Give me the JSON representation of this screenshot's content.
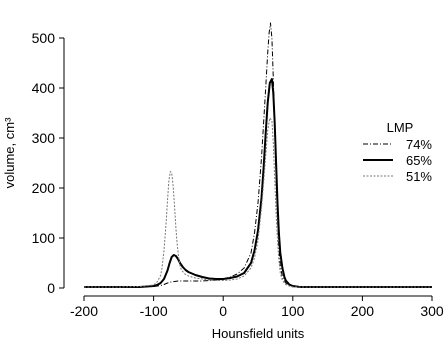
{
  "chart_data": {
    "type": "line",
    "title": "",
    "xlabel": "Hounsfield units",
    "ylabel": "volume, cm³",
    "xlim": [
      -200,
      300
    ],
    "ylim": [
      0,
      540
    ],
    "xticks": [
      -200,
      -100,
      0,
      100,
      200,
      300
    ],
    "yticks": [
      0,
      100,
      200,
      300,
      400,
      500
    ],
    "grid": false,
    "legend": {
      "title": "LMP",
      "position": "right"
    },
    "series": [
      {
        "name": "74%",
        "style": "dashdot",
        "color": "#000000",
        "x": [
          -200,
          -150,
          -120,
          -100,
          -90,
          -85,
          -80,
          -75,
          -70,
          -65,
          -60,
          -50,
          -40,
          -30,
          -20,
          -10,
          0,
          10,
          20,
          30,
          40,
          45,
          50,
          55,
          58,
          61,
          64,
          66,
          68,
          70,
          72,
          74,
          76,
          78,
          80,
          82,
          85,
          90,
          95,
          100,
          110,
          120,
          150,
          200,
          250,
          300
        ],
        "y": [
          2,
          2,
          2,
          3,
          5,
          7,
          10,
          12,
          13,
          14,
          14,
          14,
          14,
          14,
          15,
          16,
          18,
          22,
          28,
          40,
          70,
          110,
          170,
          260,
          330,
          400,
          470,
          510,
          530,
          500,
          420,
          320,
          220,
          140,
          80,
          45,
          22,
          10,
          5,
          3,
          2,
          2,
          2,
          2,
          2,
          2
        ]
      },
      {
        "name": "65%",
        "style": "solid",
        "color": "#000000",
        "x": [
          -200,
          -150,
          -120,
          -100,
          -95,
          -90,
          -85,
          -80,
          -77,
          -74,
          -71,
          -68,
          -65,
          -62,
          -58,
          -54,
          -50,
          -45,
          -40,
          -30,
          -20,
          -10,
          0,
          10,
          20,
          30,
          40,
          45,
          50,
          55,
          58,
          61,
          64,
          67,
          70,
          72,
          74,
          76,
          78,
          80,
          82,
          85,
          88,
          90,
          95,
          100,
          110,
          120,
          150,
          200,
          250,
          300
        ],
        "y": [
          2,
          2,
          2,
          4,
          6,
          10,
          18,
          35,
          50,
          62,
          66,
          64,
          58,
          50,
          42,
          36,
          32,
          29,
          26,
          22,
          19,
          18,
          18,
          20,
          23,
          30,
          50,
          75,
          115,
          180,
          240,
          310,
          370,
          410,
          418,
          390,
          330,
          250,
          170,
          110,
          70,
          40,
          22,
          15,
          7,
          4,
          2,
          2,
          2,
          2,
          2,
          2
        ]
      },
      {
        "name": "51%",
        "style": "dotted",
        "color": "#777777",
        "x": [
          -200,
          -150,
          -120,
          -100,
          -95,
          -90,
          -88,
          -85,
          -82,
          -80,
          -78,
          -76,
          -74,
          -72,
          -70,
          -68,
          -66,
          -64,
          -62,
          -60,
          -55,
          -50,
          -45,
          -40,
          -30,
          -20,
          -10,
          0,
          10,
          20,
          30,
          40,
          45,
          50,
          55,
          58,
          61,
          64,
          67,
          70,
          72,
          74,
          76,
          78,
          80,
          82,
          85,
          90,
          95,
          100,
          110,
          120,
          150,
          200,
          250,
          300
        ],
        "y": [
          2,
          2,
          3,
          6,
          12,
          25,
          40,
          75,
          130,
          175,
          215,
          233,
          230,
          205,
          165,
          120,
          85,
          60,
          45,
          36,
          28,
          24,
          22,
          20,
          18,
          16,
          15,
          15,
          16,
          18,
          24,
          40,
          60,
          95,
          160,
          210,
          265,
          315,
          340,
          335,
          290,
          220,
          150,
          95,
          55,
          30,
          15,
          7,
          4,
          2,
          2,
          2,
          2,
          2,
          2,
          2
        ]
      }
    ]
  }
}
